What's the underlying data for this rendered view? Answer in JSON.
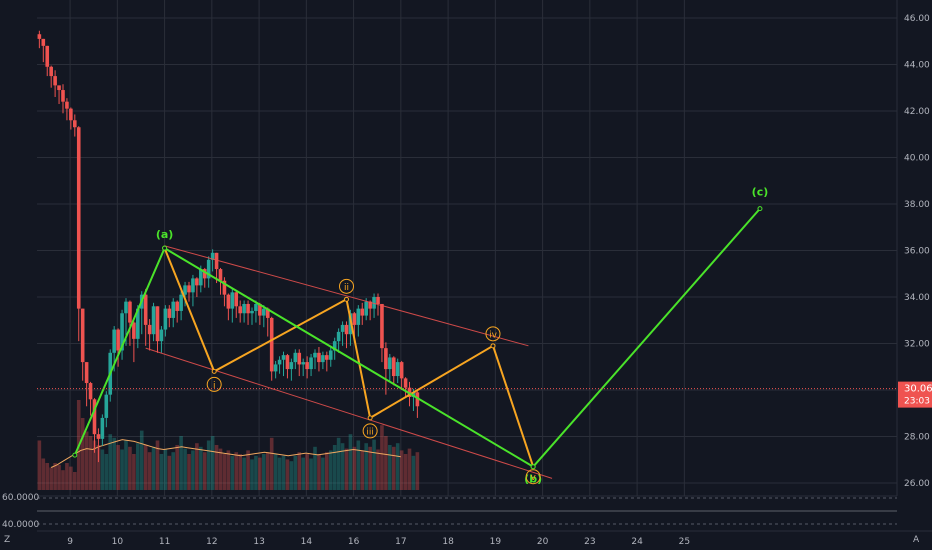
{
  "colors": {
    "background": "#131722",
    "grid": "#2a2e39",
    "up": "#26a69a",
    "down": "#ef5350",
    "green_wave": "#4ae32a",
    "orange_wave": "#f7a521",
    "channel": "#ef5350",
    "ma_line": "#f0a860",
    "price_label_bg": "#ef5350"
  },
  "chart_data": {
    "type": "candlestick",
    "ylim": [
      25.7,
      46.6
    ],
    "y_ticks": [
      26,
      28,
      30,
      32,
      34,
      36,
      38,
      40,
      42,
      44,
      46
    ],
    "y_tick_labels": [
      "26.00",
      "28.00",
      "30.00",
      "32.00",
      "34.00",
      "36.00",
      "38.00",
      "40.00",
      "42.00",
      "44.00",
      "46.00"
    ],
    "x_day_range": [
      8.3,
      26.5
    ],
    "x_ticks": [
      9,
      10,
      11,
      12,
      13,
      14,
      16,
      17,
      18,
      19,
      20,
      23,
      24,
      25
    ],
    "x_tick_positions": [
      9,
      10,
      11,
      12,
      13,
      14,
      15,
      16,
      17,
      18,
      19,
      20,
      21,
      22
    ],
    "current_price": "30.06",
    "current_price_value": 30.06,
    "countdown": "23:03",
    "timezone_marker": "Z",
    "axis_corner": "A",
    "indicator_panel": {
      "labels": [
        "60.0000",
        "40.0000"
      ]
    },
    "green_wave": {
      "points": [
        [
          9.1,
          27.2
        ],
        [
          11.0,
          36.1
        ],
        [
          18.8,
          26.7
        ],
        [
          23.6,
          37.8
        ]
      ],
      "labels": [
        "(a)",
        "(b)",
        "(c)"
      ]
    },
    "orange_wave": {
      "points": [
        [
          11.0,
          36.1
        ],
        [
          12.05,
          30.8
        ],
        [
          14.85,
          33.9
        ],
        [
          15.35,
          28.8
        ],
        [
          17.95,
          31.9
        ],
        [
          18.8,
          26.7
        ]
      ],
      "labels": [
        "i",
        "ii",
        "iii",
        "iv",
        "v"
      ]
    },
    "channel_lines": [
      {
        "from": [
          11.0,
          36.2
        ],
        "to": [
          18.7,
          31.9
        ]
      },
      {
        "from": [
          10.6,
          31.8
        ],
        "to": [
          19.2,
          26.2
        ]
      }
    ],
    "candles": [
      [
        45.3,
        45.1,
        44.7
      ],
      [
        44.5,
        44.8,
        44.1
      ],
      [
        44.3,
        43.9,
        43.5
      ],
      [
        43.8,
        43.5,
        43.0
      ],
      [
        43.6,
        43.1,
        42.6
      ],
      [
        42.8,
        42.9,
        42.3
      ],
      [
        43.0,
        42.4,
        41.9
      ],
      [
        42.4,
        42.1,
        41.6
      ],
      [
        42.0,
        41.6,
        41.2
      ],
      [
        41.7,
        41.3,
        40.9
      ],
      [
        41.2,
        33.5,
        32.1
      ],
      [
        33.3,
        31.2,
        30.4
      ],
      [
        31.0,
        30.3,
        29.3
      ],
      [
        30.2,
        29.6,
        28.9
      ],
      [
        29.5,
        28.1,
        27.3
      ],
      [
        28.2,
        27.9,
        26.9
      ],
      [
        28.0,
        28.8,
        27.6
      ],
      [
        28.7,
        29.8,
        28.4
      ],
      [
        29.9,
        31.6,
        29.5
      ],
      [
        31.5,
        32.6,
        30.8
      ],
      [
        32.5,
        31.7,
        31.0
      ],
      [
        31.8,
        33.3,
        31.3
      ],
      [
        33.2,
        33.8,
        31.9
      ],
      [
        33.7,
        32.9,
        31.9
      ],
      [
        32.8,
        32.2,
        31.2
      ],
      [
        32.1,
        33.5,
        31.8
      ],
      [
        33.3,
        34.1,
        32.4
      ],
      [
        34.2,
        32.8,
        31.9
      ],
      [
        32.9,
        32.4,
        31.7
      ],
      [
        32.5,
        33.6,
        32.1
      ],
      [
        33.4,
        32.1,
        31.6
      ],
      [
        32.0,
        32.6,
        31.6
      ],
      [
        32.7,
        33.5,
        32.3
      ],
      [
        33.5,
        33.1,
        32.7
      ],
      [
        33.0,
        33.8,
        32.7
      ],
      [
        33.7,
        33.4,
        32.9
      ],
      [
        33.3,
        34.1,
        33.0
      ],
      [
        34.0,
        34.5,
        33.6
      ],
      [
        34.5,
        34.2,
        33.8
      ],
      [
        34.1,
        34.8,
        33.6
      ],
      [
        34.7,
        34.5,
        34.0
      ],
      [
        34.5,
        35.2,
        34.2
      ],
      [
        35.1,
        34.8,
        34.4
      ],
      [
        34.8,
        35.6,
        34.4
      ],
      [
        35.5,
        35.9,
        35.1
      ],
      [
        35.7,
        35.2,
        34.6
      ],
      [
        35.1,
        34.7,
        34.1
      ],
      [
        34.7,
        34.1,
        33.6
      ],
      [
        34.0,
        33.5,
        33.0
      ],
      [
        33.6,
        34.2,
        32.9
      ],
      [
        34.1,
        33.6,
        33.1
      ],
      [
        33.7,
        33.3,
        32.9
      ],
      [
        33.2,
        33.7,
        32.9
      ],
      [
        33.7,
        33.3,
        32.8
      ],
      [
        33.4,
        33.4,
        32.8
      ],
      [
        33.3,
        33.7,
        32.9
      ],
      [
        33.6,
        33.2,
        32.8
      ],
      [
        33.1,
        33.5,
        32.7
      ],
      [
        33.4,
        33.1,
        32.3
      ],
      [
        33.0,
        30.8,
        30.4
      ],
      [
        30.9,
        31.1,
        30.5
      ],
      [
        31.2,
        31.3,
        30.7
      ],
      [
        31.1,
        31.5,
        30.6
      ],
      [
        31.4,
        30.9,
        30.5
      ],
      [
        30.9,
        31.2,
        30.4
      ],
      [
        31.3,
        31.6,
        30.9
      ],
      [
        31.6,
        31.1,
        30.6
      ],
      [
        31.0,
        31.2,
        30.6
      ],
      [
        31.3,
        30.9,
        30.5
      ],
      [
        31.0,
        31.4,
        30.6
      ],
      [
        31.4,
        31.6,
        30.9
      ],
      [
        31.7,
        31.2,
        30.8
      ],
      [
        31.3,
        31.5,
        30.9
      ],
      [
        31.5,
        31.3,
        30.8
      ],
      [
        31.2,
        31.7,
        31.0
      ],
      [
        31.7,
        32.1,
        31.3
      ],
      [
        32.1,
        32.5,
        31.6
      ],
      [
        32.3,
        32.8,
        31.9
      ],
      [
        32.8,
        32.4,
        31.8
      ],
      [
        32.5,
        33.3,
        31.9
      ],
      [
        33.2,
        32.8,
        32.2
      ],
      [
        32.9,
        33.5,
        32.3
      ],
      [
        33.6,
        33.2,
        32.8
      ],
      [
        33.3,
        33.8,
        33.0
      ],
      [
        33.7,
        33.5,
        33.0
      ],
      [
        33.5,
        34.0,
        33.1
      ],
      [
        34.0,
        33.7,
        33.2
      ],
      [
        33.5,
        31.8,
        31.2
      ],
      [
        31.9,
        30.9,
        29.8
      ],
      [
        30.9,
        31.4,
        30.4
      ],
      [
        31.3,
        30.6,
        30.2
      ],
      [
        30.7,
        31.2,
        30.3
      ],
      [
        31.1,
        30.5,
        30.0
      ],
      [
        30.4,
        30.1,
        29.7
      ],
      [
        30.2,
        29.7,
        29.3
      ],
      [
        29.6,
        29.9,
        29.1
      ],
      [
        29.8,
        29.3,
        28.8
      ]
    ],
    "volumes": [
      0.55,
      0.35,
      0.3,
      0.25,
      0.3,
      0.28,
      0.22,
      0.3,
      0.26,
      0.2,
      1.0,
      0.8,
      0.65,
      0.6,
      0.55,
      0.5,
      0.45,
      0.4,
      0.62,
      0.58,
      0.5,
      0.45,
      0.55,
      0.48,
      0.4,
      0.52,
      0.66,
      0.5,
      0.42,
      0.48,
      0.55,
      0.4,
      0.45,
      0.38,
      0.42,
      0.5,
      0.6,
      0.46,
      0.4,
      0.44,
      0.52,
      0.48,
      0.42,
      0.55,
      0.6,
      0.5,
      0.46,
      0.4,
      0.44,
      0.38,
      0.42,
      0.4,
      0.36,
      0.44,
      0.34,
      0.38,
      0.36,
      0.4,
      0.42,
      0.58,
      0.4,
      0.36,
      0.38,
      0.34,
      0.32,
      0.38,
      0.42,
      0.36,
      0.4,
      0.35,
      0.48,
      0.4,
      0.36,
      0.42,
      0.44,
      0.5,
      0.58,
      0.52,
      0.46,
      0.62,
      0.48,
      0.55,
      0.44,
      0.52,
      0.48,
      0.56,
      0.45,
      0.72,
      0.6,
      0.5,
      0.48,
      0.52,
      0.44,
      0.4,
      0.46,
      0.38,
      0.42
    ],
    "ma_values": [
      0.25,
      0.28,
      0.32,
      0.36,
      0.4,
      0.44,
      0.46,
      0.45,
      0.48,
      0.5,
      0.52,
      0.54,
      0.56,
      0.55,
      0.54,
      0.52,
      0.5,
      0.48,
      0.46,
      0.45,
      0.46,
      0.47,
      0.48,
      0.47,
      0.46,
      0.45,
      0.44,
      0.43,
      0.42,
      0.41,
      0.4,
      0.39,
      0.38,
      0.39,
      0.4,
      0.41,
      0.42,
      0.41,
      0.4,
      0.39,
      0.38,
      0.39,
      0.4,
      0.41,
      0.4,
      0.39,
      0.4,
      0.41,
      0.42,
      0.43,
      0.44,
      0.45,
      0.44,
      0.43,
      0.42,
      0.41,
      0.4,
      0.39,
      0.38,
      0.37
    ]
  }
}
